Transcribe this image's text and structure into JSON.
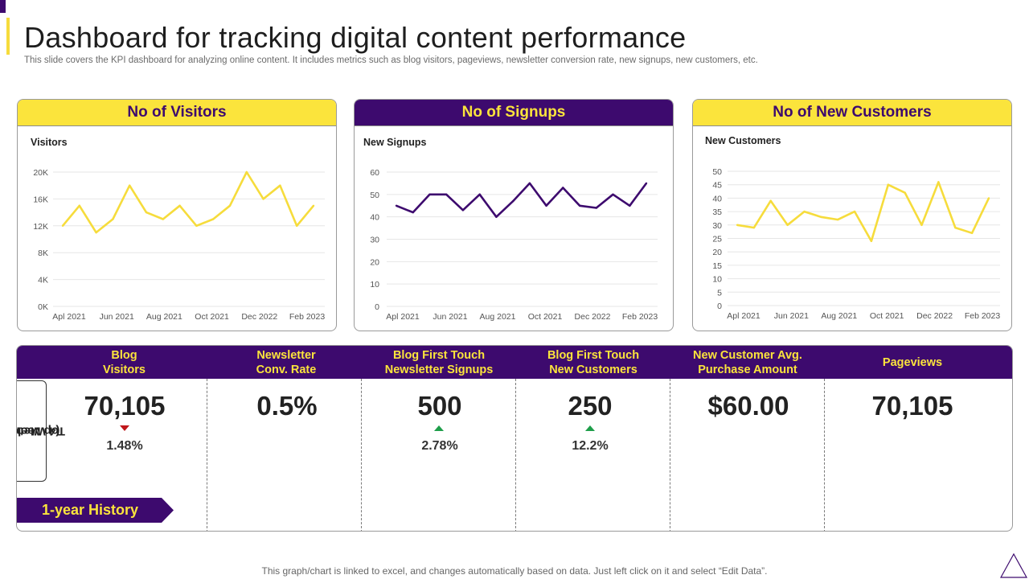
{
  "title": "Dashboard for tracking digital content performance",
  "subtitle": "This slide covers the KPI dashboard for analyzing online content. It includes metrics such as blog visitors, pageviews, newsletter conversion rate, new signups, new customers, etc.",
  "colors": {
    "purple": "#3d0a6e",
    "yellow": "#fbe43c",
    "line_yellow": "#f6dc3c",
    "up": "#1e9e4a",
    "down": "#c0161b"
  },
  "panels": [
    {
      "header": "No of Visitors",
      "chart_title": "Visitors"
    },
    {
      "header": "No of Signups",
      "chart_title": "New Signups"
    },
    {
      "header": "No of New Customers",
      "chart_title": "New Customers"
    }
  ],
  "chart_data": [
    {
      "type": "line",
      "title": "Visitors",
      "x_tick_labels": [
        "Apl 2021",
        "Jun 2021",
        "Aug 2021",
        "Oct 2021",
        "Dec 2022",
        "Feb 2023"
      ],
      "y_tick_labels": [
        "0K",
        "4K",
        "8K",
        "12K",
        "16K",
        "20K"
      ],
      "ylim": [
        0,
        20000
      ],
      "series": [
        {
          "name": "Visitors",
          "values": [
            12000,
            15000,
            11000,
            13000,
            18000,
            14000,
            13000,
            15000,
            12000,
            13000,
            15000,
            20000,
            16000,
            18000,
            12000,
            15000
          ]
        }
      ]
    },
    {
      "type": "line",
      "title": "New Signups",
      "x_tick_labels": [
        "Apl 2021",
        "Jun 2021",
        "Aug 2021",
        "Oct 2021",
        "Dec 2022",
        "Feb 2023"
      ],
      "y_tick_labels": [
        "0",
        "10",
        "20",
        "30",
        "40",
        "50",
        "60"
      ],
      "ylim": [
        0,
        60
      ],
      "series": [
        {
          "name": "New Signups",
          "values": [
            45,
            42,
            50,
            50,
            43,
            50,
            40,
            47,
            55,
            45,
            53,
            45,
            44,
            50,
            45,
            55
          ]
        }
      ]
    },
    {
      "type": "line",
      "title": "New Customers",
      "x_tick_labels": [
        "Apl 2021",
        "Jun 2021",
        "Aug 2021",
        "Oct 2021",
        "Dec 2022",
        "Feb 2023"
      ],
      "y_tick_labels": [
        "0",
        "5",
        "10",
        "15",
        "20",
        "25",
        "30",
        "35",
        "40",
        "45",
        "50"
      ],
      "ylim": [
        0,
        50
      ],
      "series": [
        {
          "name": "New Customers",
          "values": [
            30,
            29,
            39,
            30,
            35,
            33,
            32,
            35,
            24,
            45,
            42,
            30,
            46,
            29,
            27,
            40
          ]
        }
      ]
    }
  ],
  "metrics": {
    "side_label_line1": "Top Metrics",
    "side_label_line2": "(4 Weeks)",
    "history_label": "1-year History",
    "items": [
      {
        "label_line1": "Blog",
        "label_line2": "Visitors",
        "value": "70,105",
        "change": "1.48%",
        "trend": "down"
      },
      {
        "label_line1": "Newsletter",
        "label_line2": "Conv. Rate",
        "value": "0.5%",
        "change": "",
        "trend": ""
      },
      {
        "label_line1": "Blog First Touch",
        "label_line2": "Newsletter Signups",
        "value": "500",
        "change": "2.78%",
        "trend": "up"
      },
      {
        "label_line1": "Blog First Touch",
        "label_line2": "New Customers",
        "value": "250",
        "change": "12.2%",
        "trend": "up"
      },
      {
        "label_line1": "New Customer Avg.",
        "label_line2": "Purchase Amount",
        "value": "$60.00",
        "change": "",
        "trend": ""
      },
      {
        "label_line1": "Pageviews",
        "label_line2": "",
        "value": "70,105",
        "change": "",
        "trend": ""
      }
    ]
  },
  "footer": "This graph/chart is linked to excel,  and changes automatically based on data. Just left click on it and select “Edit Data”."
}
